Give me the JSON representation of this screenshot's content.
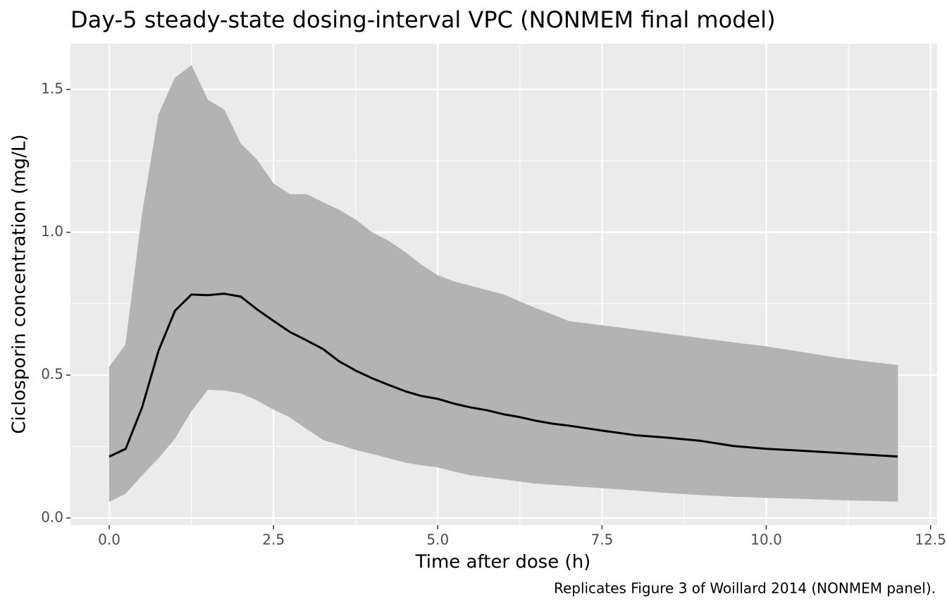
{
  "chart_data": {
    "type": "ribbon-line",
    "title": "Day-5 steady-state dosing-interval VPC (NONMEM final model)",
    "x_label": "Time after dose (h)",
    "y_label": "Ciclosporin concentration (mg/L)",
    "caption": "Replicates Figure 3 of Woillard 2014 (NONMEM panel).",
    "x": [
      0,
      0.25,
      0.5,
      0.75,
      1,
      1.25,
      1.5,
      1.75,
      2,
      2.25,
      2.5,
      2.75,
      3,
      3.25,
      3.5,
      3.75,
      4,
      4.25,
      4.5,
      4.75,
      5,
      5.25,
      5.5,
      5.75,
      6,
      6.25,
      6.5,
      6.75,
      7,
      7.5,
      8,
      8.5,
      9,
      9.5,
      10,
      10.5,
      11,
      11.5,
      12
    ],
    "line": {
      "color": "#000000",
      "values": [
        0.215,
        0.242,
        0.387,
        0.585,
        0.725,
        0.782,
        0.78,
        0.785,
        0.775,
        0.73,
        0.69,
        0.651,
        0.622,
        0.592,
        0.548,
        0.516,
        0.489,
        0.466,
        0.444,
        0.427,
        0.417,
        0.4,
        0.387,
        0.377,
        0.363,
        0.353,
        0.34,
        0.33,
        0.323,
        0.306,
        0.29,
        0.281,
        0.27,
        0.252,
        0.242,
        0.236,
        0.229,
        0.222,
        0.215
      ]
    },
    "band": {
      "color": "#b3b3b3",
      "upper": [
        0.528,
        0.607,
        1.061,
        1.411,
        1.54,
        1.584,
        1.463,
        1.429,
        1.31,
        1.253,
        1.17,
        1.133,
        1.133,
        1.105,
        1.078,
        1.044,
        0.999,
        0.97,
        0.93,
        0.886,
        0.849,
        0.827,
        0.812,
        0.797,
        0.782,
        0.757,
        0.733,
        0.711,
        0.688,
        0.674,
        0.659,
        0.644,
        0.629,
        0.614,
        0.6,
        0.582,
        0.563,
        0.548,
        0.535
      ],
      "lower": [
        0.057,
        0.086,
        0.15,
        0.21,
        0.279,
        0.375,
        0.449,
        0.447,
        0.437,
        0.412,
        0.38,
        0.353,
        0.313,
        0.274,
        0.257,
        0.239,
        0.225,
        0.21,
        0.195,
        0.185,
        0.178,
        0.163,
        0.15,
        0.143,
        0.136,
        0.128,
        0.121,
        0.117,
        0.113,
        0.105,
        0.097,
        0.088,
        0.081,
        0.075,
        0.071,
        0.068,
        0.064,
        0.061,
        0.058
      ]
    },
    "xlim": [
      -0.59,
      12.6
    ],
    "ylim": [
      -0.025,
      1.66
    ],
    "xticks": [
      {
        "value": 0,
        "label": "0.0"
      },
      2.5,
      {
        "value": 5,
        "label": "5.0"
      },
      7.5,
      {
        "value": 10,
        "label": "10.0"
      },
      12.5
    ],
    "yticks": [
      {
        "value": 0,
        "label": "0.0"
      },
      0.5,
      {
        "value": 1,
        "label": "1.0"
      },
      1.5
    ],
    "grid": true
  }
}
